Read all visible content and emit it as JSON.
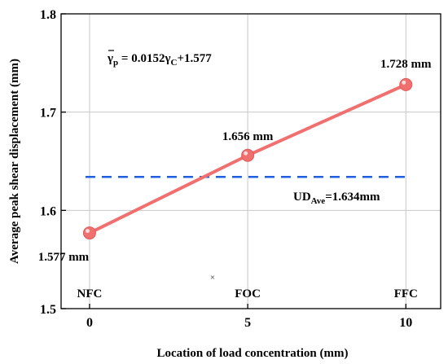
{
  "chart_data": {
    "type": "line",
    "xlabel": "Location of load concentration (mm)",
    "ylabel": "Average peak shear displacement (mm)",
    "xlim": [
      -0.9,
      11.1
    ],
    "ylim": [
      1.5,
      1.8
    ],
    "x_ticks": [
      "0",
      "5",
      "10"
    ],
    "y_ticks": [
      "1.5",
      "1.6",
      "1.7",
      "1.8"
    ],
    "grid": true,
    "series": [
      {
        "x": [
          0,
          5,
          10
        ],
        "y": [
          1.577,
          1.656,
          1.728
        ],
        "color": "#f07070"
      }
    ],
    "point_labels": [
      "1.577 mm",
      "1.656 mm",
      "1.728 mm"
    ],
    "category_labels": [
      "NFC",
      "FOC",
      "FFC"
    ],
    "reference_line": {
      "y": 1.634,
      "color": "#1f5fe0",
      "label_main": "UD",
      "label_sub": "Ave",
      "label_rest": "=1.634mm"
    },
    "equation": {
      "part1": "γ",
      "part1_sub": "p",
      "part2": " = 0.0152γ",
      "part2_sub": "C",
      "part3": "+1.577"
    }
  }
}
